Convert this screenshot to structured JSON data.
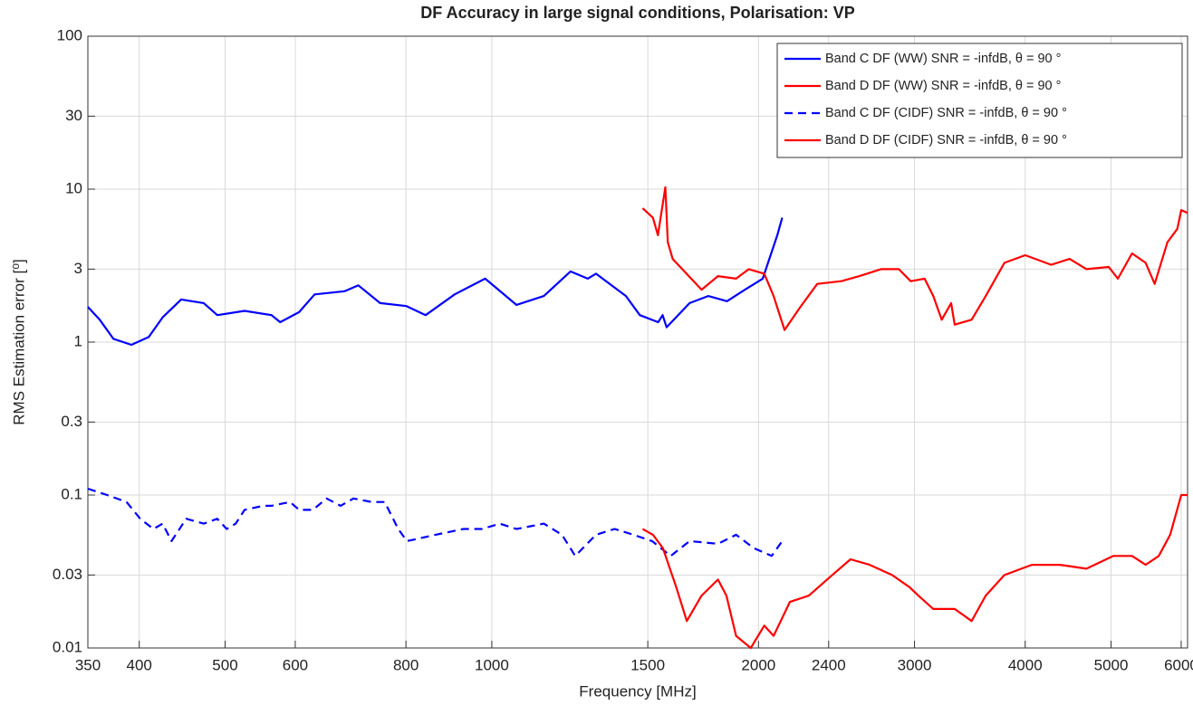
{
  "chart_data": {
    "type": "line",
    "title": "DF Accuracy in large signal conditions, Polarisation: VP",
    "x_label": "Frequency [MHz]",
    "y_label": "RMS Estimation error [⁰]",
    "xscale": "log",
    "yscale": "log",
    "grid": true,
    "legend": "upper right",
    "xlim": [
      350,
      6100
    ],
    "ylim": [
      0.01,
      100
    ],
    "xticks": [
      350,
      400,
      500,
      600,
      800,
      1000,
      1500,
      2000,
      2400,
      3000,
      4000,
      5000,
      6000
    ],
    "yticks": [
      0.01,
      0.03,
      0.1,
      0.3,
      1,
      3,
      10,
      30,
      100
    ],
    "series": [
      {
        "name": "Band C DF (WW) SNR = -infdB, θ = 90 °",
        "color": "#0000ff",
        "linestyle": "solid",
        "x": [
          350,
          361,
          374,
          392,
          410,
          425,
          446,
          473,
          490,
          526,
          564,
          577,
          606,
          631,
          682,
          707,
          748,
          801,
          842,
          908,
          983,
          1066,
          1145,
          1227,
          1283,
          1311,
          1417,
          1469,
          1541,
          1559,
          1575,
          1672,
          1755,
          1843,
          1931,
          2022,
          2100,
          2127
        ],
        "values": [
          1.7,
          1.4,
          1.05,
          0.96,
          1.08,
          1.45,
          1.9,
          1.8,
          1.5,
          1.6,
          1.5,
          1.35,
          1.57,
          2.05,
          2.15,
          2.35,
          1.8,
          1.72,
          1.5,
          2.05,
          2.6,
          1.75,
          2.0,
          2.9,
          2.6,
          2.8,
          2.0,
          1.5,
          1.35,
          1.5,
          1.25,
          1.8,
          2.0,
          1.85,
          2.2,
          2.6,
          5.0,
          6.5
        ]
      },
      {
        "name": "Band D DF (WW) SNR = -infdB, θ = 90 °",
        "color": "#ff0000",
        "linestyle": "solid",
        "x": [
          1480,
          1520,
          1540,
          1570,
          1580,
          1600,
          1725,
          1800,
          1887,
          1950,
          2030,
          2080,
          2140,
          2230,
          2330,
          2480,
          2600,
          2750,
          2880,
          2970,
          3080,
          3150,
          3220,
          3300,
          3330,
          3480,
          3610,
          3790,
          4000,
          4280,
          4490,
          4690,
          4970,
          5090,
          5280,
          5470,
          5600,
          5790,
          5940,
          6000,
          6100
        ],
        "values": [
          7.5,
          6.5,
          5.0,
          10.3,
          4.5,
          3.5,
          2.2,
          2.7,
          2.6,
          3.0,
          2.8,
          2.0,
          1.2,
          1.7,
          2.4,
          2.5,
          2.7,
          3.0,
          3.0,
          2.5,
          2.6,
          2.0,
          1.4,
          1.8,
          1.3,
          1.4,
          2.0,
          3.3,
          3.7,
          3.2,
          3.5,
          3.0,
          3.1,
          2.6,
          3.8,
          3.3,
          2.4,
          4.5,
          5.5,
          7.3,
          7.0
        ]
      },
      {
        "name": "Band C DF (CIDF) SNR = -infdB, θ = 90 °",
        "color": "#0000ff",
        "linestyle": "dashed",
        "x": [
          350,
          368,
          387,
          401,
          415,
          425,
          435,
          452,
          473,
          490,
          502,
          514,
          526,
          552,
          564,
          592,
          606,
          628,
          651,
          675,
          698,
          732,
          757,
          784,
          802,
          864,
          929,
          975,
          1021,
          1066,
          1145,
          1200,
          1242,
          1311,
          1376,
          1445,
          1517,
          1592,
          1672,
          1800,
          1887,
          1975,
          2070,
          2127
        ],
        "values": [
          0.11,
          0.1,
          0.09,
          0.07,
          0.06,
          0.065,
          0.05,
          0.07,
          0.065,
          0.07,
          0.06,
          0.065,
          0.08,
          0.085,
          0.085,
          0.09,
          0.08,
          0.08,
          0.095,
          0.085,
          0.095,
          0.09,
          0.09,
          0.06,
          0.05,
          0.055,
          0.06,
          0.06,
          0.065,
          0.06,
          0.065,
          0.055,
          0.04,
          0.055,
          0.06,
          0.055,
          0.05,
          0.04,
          0.05,
          0.048,
          0.055,
          0.045,
          0.04,
          0.05
        ]
      },
      {
        "name": "Band D DF (CIDF) SNR = -infdB, θ = 90 °",
        "color": "#ff0000",
        "linestyle": "solid",
        "x": [
          1480,
          1520,
          1560,
          1615,
          1660,
          1725,
          1800,
          1840,
          1887,
          1960,
          2030,
          2080,
          2170,
          2280,
          2390,
          2540,
          2670,
          2830,
          2960,
          3030,
          3150,
          3330,
          3480,
          3610,
          3790,
          4070,
          4380,
          4690,
          5030,
          5280,
          5470,
          5660,
          5830,
          6000,
          6100
        ],
        "values": [
          0.06,
          0.055,
          0.045,
          0.025,
          0.015,
          0.022,
          0.028,
          0.022,
          0.012,
          0.01,
          0.014,
          0.012,
          0.02,
          0.022,
          0.028,
          0.038,
          0.035,
          0.03,
          0.025,
          0.022,
          0.018,
          0.018,
          0.015,
          0.022,
          0.03,
          0.035,
          0.035,
          0.033,
          0.04,
          0.04,
          0.035,
          0.04,
          0.055,
          0.1,
          0.1
        ]
      }
    ]
  }
}
